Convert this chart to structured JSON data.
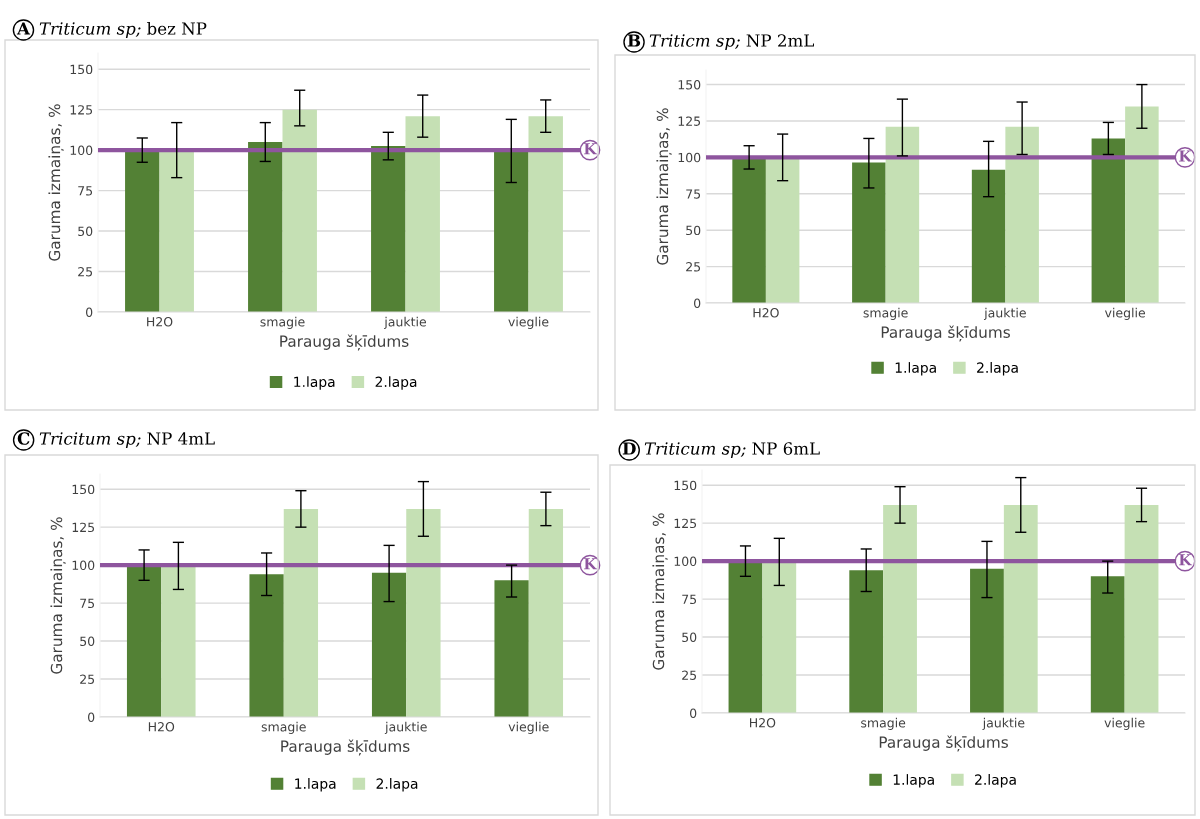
{
  "chart_data": [
    {
      "type": "bar",
      "title": "A Triticum sp; bez NP",
      "xlabel": "Parauga šķīdums",
      "ylabel": "Garuma izmaiņas, %",
      "categories": [
        "H2O",
        "smagie",
        "jauktie",
        "vieglie"
      ],
      "series": [
        {
          "name": "1.lapa",
          "color": "#538135",
          "values": [
            100,
            105,
            102.5,
            100
          ],
          "errors": [
            [
              92.5,
              107.5
            ],
            [
              93,
              117
            ],
            [
              94,
              111
            ],
            [
              80,
              119
            ]
          ]
        },
        {
          "name": "2.lapa",
          "color": "#c5e0b4",
          "values": [
            100,
            125,
            121,
            121
          ],
          "errors": [
            [
              83,
              117
            ],
            [
              115,
              137
            ],
            [
              108,
              134
            ],
            [
              111,
              131
            ]
          ]
        }
      ],
      "ylim": [
        0,
        160
      ],
      "yticks": [
        0,
        25,
        50,
        75,
        100,
        125,
        150
      ],
      "grid": "y",
      "legend": "bottom",
      "ref_lines": [
        {
          "axis": "y",
          "value": 100,
          "label": "K",
          "color": "#8e559e"
        }
      ]
    },
    {
      "type": "bar",
      "title": "B Triticm sp; NP 2mL",
      "xlabel": "Parauga šķīdums",
      "ylabel": "Garuma izmaiņas, %",
      "categories": [
        "H2O",
        "smagie",
        "jauktie",
        "vieglie"
      ],
      "series": [
        {
          "name": "1.lapa",
          "color": "#538135",
          "values": [
            100,
            96.5,
            91.5,
            113
          ],
          "errors": [
            [
              92,
              108
            ],
            [
              79,
              113
            ],
            [
              73,
              111
            ],
            [
              102,
              124
            ]
          ]
        },
        {
          "name": "2.lapa",
          "color": "#c5e0b4",
          "values": [
            100,
            121,
            121,
            135
          ],
          "errors": [
            [
              84,
              116
            ],
            [
              101,
              140
            ],
            [
              102,
              138
            ],
            [
              120,
              150
            ]
          ]
        }
      ],
      "ylim": [
        0,
        160
      ],
      "yticks": [
        0,
        25,
        50,
        75,
        100,
        125,
        150
      ],
      "grid": "y",
      "legend": "bottom",
      "ref_lines": [
        {
          "axis": "y",
          "value": 100,
          "label": "K",
          "color": "#8e559e"
        }
      ]
    },
    {
      "type": "bar",
      "title": "C Tricitum sp; NP 4mL",
      "xlabel": "Parauga šķīdums",
      "ylabel": "Garuma izmaiņas, %",
      "categories": [
        "H2O",
        "smagie",
        "jauktie",
        "vieglie"
      ],
      "series": [
        {
          "name": "1.lapa",
          "color": "#538135",
          "values": [
            100,
            94,
            95,
            90
          ],
          "errors": [
            [
              90,
              110
            ],
            [
              80,
              108
            ],
            [
              76,
              113
            ],
            [
              79,
              100
            ]
          ]
        },
        {
          "name": "2.lapa",
          "color": "#c5e0b4",
          "values": [
            100,
            137,
            137,
            137
          ],
          "errors": [
            [
              84,
              115
            ],
            [
              125,
              149
            ],
            [
              119,
              155
            ],
            [
              126,
              148
            ]
          ]
        }
      ],
      "ylim": [
        0,
        160
      ],
      "yticks": [
        0,
        25,
        50,
        75,
        100,
        125,
        150
      ],
      "grid": "y",
      "legend": "bottom",
      "ref_lines": [
        {
          "axis": "y",
          "value": 100,
          "label": "K",
          "color": "#8e559e"
        }
      ]
    },
    {
      "type": "bar",
      "title": "D Triticum sp; NP 6mL",
      "xlabel": "Parauga šķīdums",
      "ylabel": "Garuma izmaiņas, %",
      "categories": [
        "H2O",
        "smagie",
        "jauktie",
        "vieglie"
      ],
      "series": [
        {
          "name": "1.lapa",
          "color": "#538135",
          "values": [
            100,
            94,
            95,
            90
          ],
          "errors": [
            [
              90,
              110
            ],
            [
              80,
              108
            ],
            [
              76,
              113
            ],
            [
              79,
              100
            ]
          ]
        },
        {
          "name": "2.lapa",
          "color": "#c5e0b4",
          "values": [
            100,
            137,
            137,
            137
          ],
          "errors": [
            [
              84,
              115
            ],
            [
              125,
              149
            ],
            [
              119,
              155
            ],
            [
              126,
              148
            ]
          ]
        }
      ],
      "ylim": [
        0,
        160
      ],
      "yticks": [
        0,
        25,
        50,
        75,
        100,
        125,
        150
      ],
      "grid": "y",
      "legend": "bottom",
      "ref_lines": [
        {
          "axis": "y",
          "value": 100,
          "label": "K",
          "color": "#8e559e"
        }
      ]
    }
  ]
}
